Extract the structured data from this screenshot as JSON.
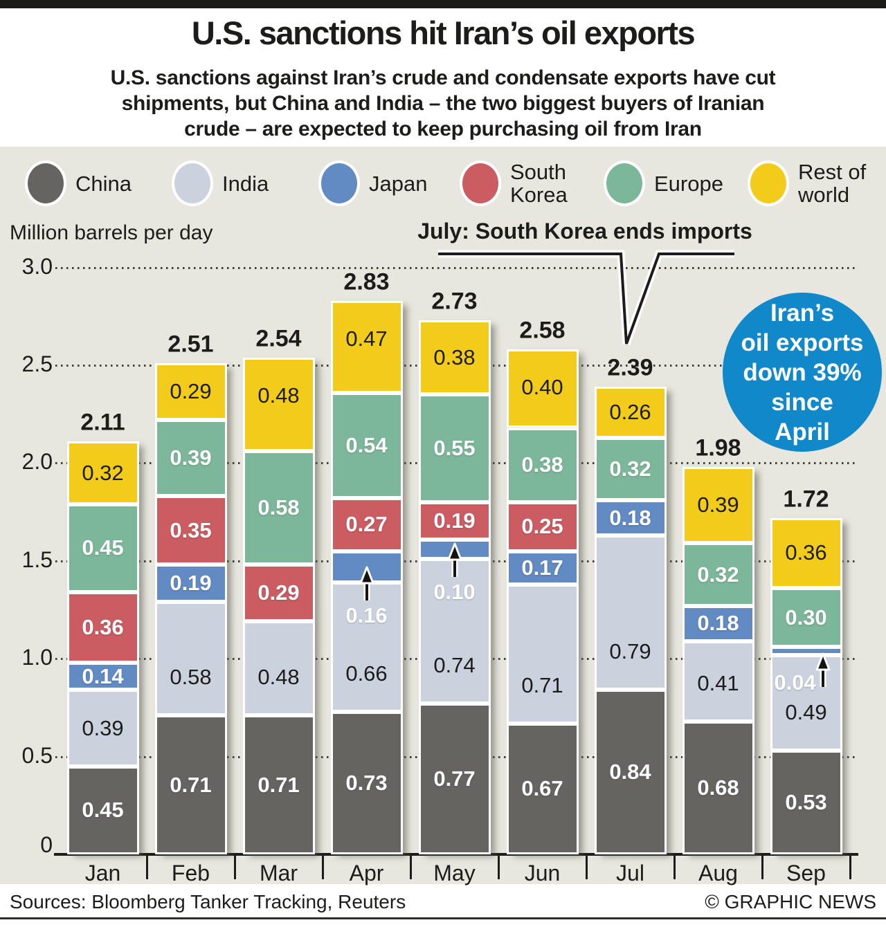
{
  "header": {
    "title": "U.S. sanctions hit Iran’s oil exports",
    "subtitle_lines": [
      "U.S. sanctions against Iran’s crude and condensate exports have cut",
      "shipments, but China and India – the two biggest buyers of Iranian",
      "crude – are expected to keep purchasing oil from Iran"
    ]
  },
  "legend": {
    "items": [
      {
        "id": "china",
        "label_lines": [
          "China"
        ],
        "color": "#656461"
      },
      {
        "id": "india",
        "label_lines": [
          "India"
        ],
        "color": "#cbd2de"
      },
      {
        "id": "japan",
        "label_lines": [
          "Japan"
        ],
        "color": "#628ac3"
      },
      {
        "id": "south_korea",
        "label_lines": [
          "South",
          "Korea"
        ],
        "color": "#cb5c62"
      },
      {
        "id": "europe",
        "label_lines": [
          "Europe"
        ],
        "color": "#7db79b"
      },
      {
        "id": "rest_of_world",
        "label_lines": [
          "Rest of",
          "world"
        ],
        "color": "#f3cc1b"
      }
    ]
  },
  "axis": {
    "unit_label": "Million barrels per day",
    "yticks": [
      3.0,
      2.5,
      2.0,
      1.5,
      1.0,
      0.5,
      0
    ],
    "ytick_labels": [
      "3.0",
      "2.5",
      "2.0",
      "1.5",
      "1.0",
      "0.5",
      "0"
    ]
  },
  "annotation": {
    "text": "July: South Korea ends imports"
  },
  "badge": {
    "lines": [
      "Iran’s",
      "oil exports",
      "down 39%",
      "since",
      "April"
    ],
    "bg": "#1088c9"
  },
  "footer": {
    "sources": "Sources: Bloomberg Tanker Tracking, Reuters",
    "credit": "© GRAPHIC NEWS"
  },
  "colors": {
    "background": "#e8e7df",
    "china": "#656461",
    "india": "#cbd2de",
    "japan": "#628ac3",
    "south_korea": "#cb5c62",
    "europe": "#7db79b",
    "rest_of_world": "#f3cc1b",
    "badge_blue": "#1088c9",
    "text": "#1c1c1a"
  },
  "chart_data": {
    "type": "bar",
    "stacked": true,
    "title": "U.S. sanctions hit Iran’s oil exports",
    "ylabel": "Million barrels per day",
    "ylim": [
      0,
      3.0
    ],
    "grid": true,
    "legend_position": "top",
    "series_styles": {
      "china": {
        "name": "China",
        "color": "#656461",
        "label_class": "light"
      },
      "india": {
        "name": "India",
        "color": "#cbd2de",
        "label_class": "dark"
      },
      "japan": {
        "name": "Japan",
        "color": "#628ac3",
        "label_class": "light"
      },
      "south_korea": {
        "name": "South Korea",
        "color": "#cb5c62",
        "label_class": "light"
      },
      "europe": {
        "name": "Europe",
        "color": "#7db79b",
        "label_class": "light"
      },
      "rest_of_world": {
        "name": "Rest of world",
        "color": "#f3cc1b",
        "label_class": "dark"
      }
    },
    "categories": [
      "Jan",
      "Feb",
      "Mar",
      "Apr",
      "May",
      "Jun",
      "Jul",
      "Aug",
      "Sep"
    ],
    "months": [
      {
        "label": "Jan",
        "total": "2.11",
        "segments": [
          {
            "series": "china",
            "value": 0.45,
            "label": "0.45",
            "label_mode": "inside"
          },
          {
            "series": "india",
            "value": 0.39,
            "label": "0.39",
            "label_mode": "inside"
          },
          {
            "series": "japan",
            "value": 0.14,
            "label": "0.14",
            "label_mode": "inside"
          },
          {
            "series": "south_korea",
            "value": 0.36,
            "label": "0.36",
            "label_mode": "inside"
          },
          {
            "series": "europe",
            "value": 0.45,
            "label": "0.45",
            "label_mode": "inside"
          },
          {
            "series": "rest_of_world",
            "value": 0.32,
            "label": "0.32",
            "label_mode": "inside"
          }
        ]
      },
      {
        "label": "Feb",
        "total": "2.51",
        "segments": [
          {
            "series": "china",
            "value": 0.71,
            "label": "0.71",
            "label_mode": "inside"
          },
          {
            "series": "india",
            "value": 0.58,
            "label": "0.58",
            "label_mode": "inside"
          },
          {
            "series": "japan",
            "value": 0.19,
            "label": "0.19",
            "label_mode": "inside"
          },
          {
            "series": "south_korea",
            "value": 0.35,
            "label": "0.35",
            "label_mode": "inside"
          },
          {
            "series": "europe",
            "value": 0.39,
            "label": "0.39",
            "label_mode": "inside"
          },
          {
            "series": "rest_of_world",
            "value": 0.29,
            "label": "0.29",
            "label_mode": "inside"
          }
        ]
      },
      {
        "label": "Mar",
        "total": "2.54",
        "segments": [
          {
            "series": "china",
            "value": 0.71,
            "label": "0.71",
            "label_mode": "inside"
          },
          {
            "series": "india",
            "value": 0.48,
            "label": "0.48",
            "label_mode": "inside"
          },
          {
            "series": "south_korea",
            "value": 0.29,
            "label": "0.29",
            "label_mode": "inside"
          },
          {
            "series": "europe",
            "value": 0.58,
            "label": "0.58",
            "label_mode": "inside"
          },
          {
            "series": "rest_of_world",
            "value": 0.48,
            "label": "0.48",
            "label_mode": "inside"
          }
        ]
      },
      {
        "label": "Apr",
        "total": "2.83",
        "segments": [
          {
            "series": "china",
            "value": 0.73,
            "label": "0.73",
            "label_mode": "inside"
          },
          {
            "series": "india",
            "value": 0.66,
            "label": "0.66",
            "label_mode": "inside"
          },
          {
            "series": "japan",
            "value": 0.16,
            "label": "0.16",
            "label_mode": "arrow-above"
          },
          {
            "series": "south_korea",
            "value": 0.27,
            "label": "0.27",
            "label_mode": "inside"
          },
          {
            "series": "europe",
            "value": 0.54,
            "label": "0.54",
            "label_mode": "inside"
          },
          {
            "series": "rest_of_world",
            "value": 0.47,
            "label": "0.47",
            "label_mode": "inside"
          }
        ]
      },
      {
        "label": "May",
        "total": "2.73",
        "segments": [
          {
            "series": "china",
            "value": 0.77,
            "label": "0.77",
            "label_mode": "inside"
          },
          {
            "series": "india",
            "value": 0.74,
            "label": "0.74",
            "label_mode": "inside"
          },
          {
            "series": "japan",
            "value": 0.1,
            "label": "0.10",
            "label_mode": "arrow-above"
          },
          {
            "series": "south_korea",
            "value": 0.19,
            "label": "0.19",
            "label_mode": "inside"
          },
          {
            "series": "europe",
            "value": 0.55,
            "label": "0.55",
            "label_mode": "inside"
          },
          {
            "series": "rest_of_world",
            "value": 0.38,
            "label": "0.38",
            "label_mode": "inside"
          }
        ]
      },
      {
        "label": "Jun",
        "total": "2.58",
        "segments": [
          {
            "series": "china",
            "value": 0.67,
            "label": "0.67",
            "label_mode": "inside"
          },
          {
            "series": "india",
            "value": 0.71,
            "label": "0.71",
            "label_mode": "inside"
          },
          {
            "series": "japan",
            "value": 0.17,
            "label": "0.17",
            "label_mode": "inside"
          },
          {
            "series": "south_korea",
            "value": 0.25,
            "label": "0.25",
            "label_mode": "inside"
          },
          {
            "series": "europe",
            "value": 0.38,
            "label": "0.38",
            "label_mode": "inside"
          },
          {
            "series": "rest_of_world",
            "value": 0.4,
            "label": "0.40",
            "label_mode": "inside"
          }
        ]
      },
      {
        "label": "Jul",
        "total": "2.39",
        "segments": [
          {
            "series": "china",
            "value": 0.84,
            "label": "0.84",
            "label_mode": "inside"
          },
          {
            "series": "india",
            "value": 0.79,
            "label": "0.79",
            "label_mode": "inside"
          },
          {
            "series": "japan",
            "value": 0.18,
            "label": "0.18",
            "label_mode": "inside"
          },
          {
            "series": "europe",
            "value": 0.32,
            "label": "0.32",
            "label_mode": "inside"
          },
          {
            "series": "rest_of_world",
            "value": 0.26,
            "label": "0.26",
            "label_mode": "inside"
          }
        ]
      },
      {
        "label": "Aug",
        "total": "1.98",
        "segments": [
          {
            "series": "china",
            "value": 0.68,
            "label": "0.68",
            "label_mode": "inside"
          },
          {
            "series": "india",
            "value": 0.41,
            "label": "0.41",
            "label_mode": "inside"
          },
          {
            "series": "japan",
            "value": 0.18,
            "label": "0.18",
            "label_mode": "inside"
          },
          {
            "series": "europe",
            "value": 0.32,
            "label": "0.32",
            "label_mode": "inside"
          },
          {
            "series": "rest_of_world",
            "value": 0.39,
            "label": "0.39",
            "label_mode": "inside"
          }
        ]
      },
      {
        "label": "Sep",
        "total": "1.72",
        "segments": [
          {
            "series": "china",
            "value": 0.53,
            "label": "0.53",
            "label_mode": "inside"
          },
          {
            "series": "india",
            "value": 0.49,
            "label": "0.49",
            "label_mode": "inside"
          },
          {
            "series": "japan",
            "value": 0.04,
            "label": "0.04",
            "label_mode": "arrow-right"
          },
          {
            "series": "europe",
            "value": 0.3,
            "label": "0.30",
            "label_mode": "inside"
          },
          {
            "series": "rest_of_world",
            "value": 0.36,
            "label": "0.36",
            "label_mode": "inside"
          }
        ]
      }
    ]
  }
}
